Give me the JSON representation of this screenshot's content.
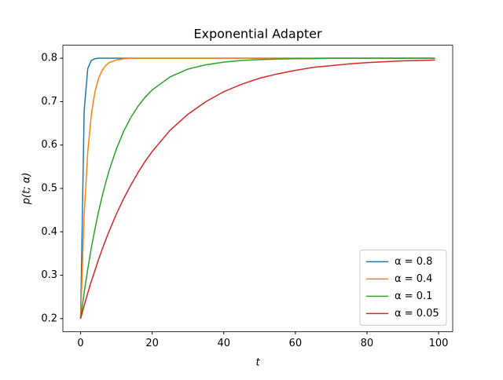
{
  "chart_data": {
    "type": "line",
    "title": "Exponential Adapter",
    "x_label": "t",
    "y_label": "p(t; α)",
    "x": [
      0,
      1,
      2,
      3,
      4,
      5,
      6,
      7,
      8,
      10,
      12,
      14,
      16,
      18,
      20,
      25,
      30,
      35,
      40,
      45,
      50,
      55,
      60,
      65,
      70,
      75,
      80,
      85,
      90,
      95,
      99
    ],
    "series": [
      {
        "name": "α = 0.8",
        "color": "#1f77b4",
        "values": [
          0.2,
          0.68,
          0.776,
          0.795,
          0.799,
          0.8,
          0.8,
          0.8,
          0.8,
          0.8,
          0.8,
          0.8,
          0.8,
          0.8,
          0.8,
          0.8,
          0.8,
          0.8,
          0.8,
          0.8,
          0.8,
          0.8,
          0.8,
          0.8,
          0.8,
          0.8,
          0.8,
          0.8,
          0.8,
          0.8,
          0.8
        ]
      },
      {
        "name": "α = 0.4",
        "color": "#ff7f0e",
        "values": [
          0.2,
          0.44,
          0.584,
          0.67,
          0.722,
          0.753,
          0.772,
          0.783,
          0.79,
          0.796,
          0.799,
          0.8,
          0.8,
          0.8,
          0.8,
          0.8,
          0.8,
          0.8,
          0.8,
          0.8,
          0.8,
          0.8,
          0.8,
          0.8,
          0.8,
          0.8,
          0.8,
          0.8,
          0.8,
          0.8,
          0.8
        ]
      },
      {
        "name": "α = 0.1",
        "color": "#2ca02c",
        "values": [
          0.2,
          0.26,
          0.314,
          0.363,
          0.406,
          0.446,
          0.481,
          0.513,
          0.542,
          0.591,
          0.631,
          0.663,
          0.689,
          0.71,
          0.727,
          0.757,
          0.775,
          0.785,
          0.791,
          0.795,
          0.797,
          0.798,
          0.799,
          0.799,
          0.8,
          0.8,
          0.8,
          0.8,
          0.8,
          0.8,
          0.8
        ]
      },
      {
        "name": "α = 0.05",
        "color": "#d62728",
        "values": [
          0.2,
          0.23,
          0.259,
          0.286,
          0.311,
          0.336,
          0.359,
          0.381,
          0.402,
          0.441,
          0.476,
          0.507,
          0.536,
          0.562,
          0.585,
          0.634,
          0.671,
          0.7,
          0.723,
          0.74,
          0.754,
          0.764,
          0.772,
          0.779,
          0.783,
          0.787,
          0.79,
          0.792,
          0.794,
          0.795,
          0.796
        ]
      }
    ],
    "xlim": [
      -4.95,
      103.95
    ],
    "xticks": [
      0,
      20,
      40,
      60,
      80,
      100
    ],
    "ylim": [
      0.17,
      0.83
    ],
    "yticks": [
      0.2,
      0.3,
      0.4,
      0.5,
      0.6,
      0.7,
      0.8
    ],
    "legend": "lower right"
  }
}
